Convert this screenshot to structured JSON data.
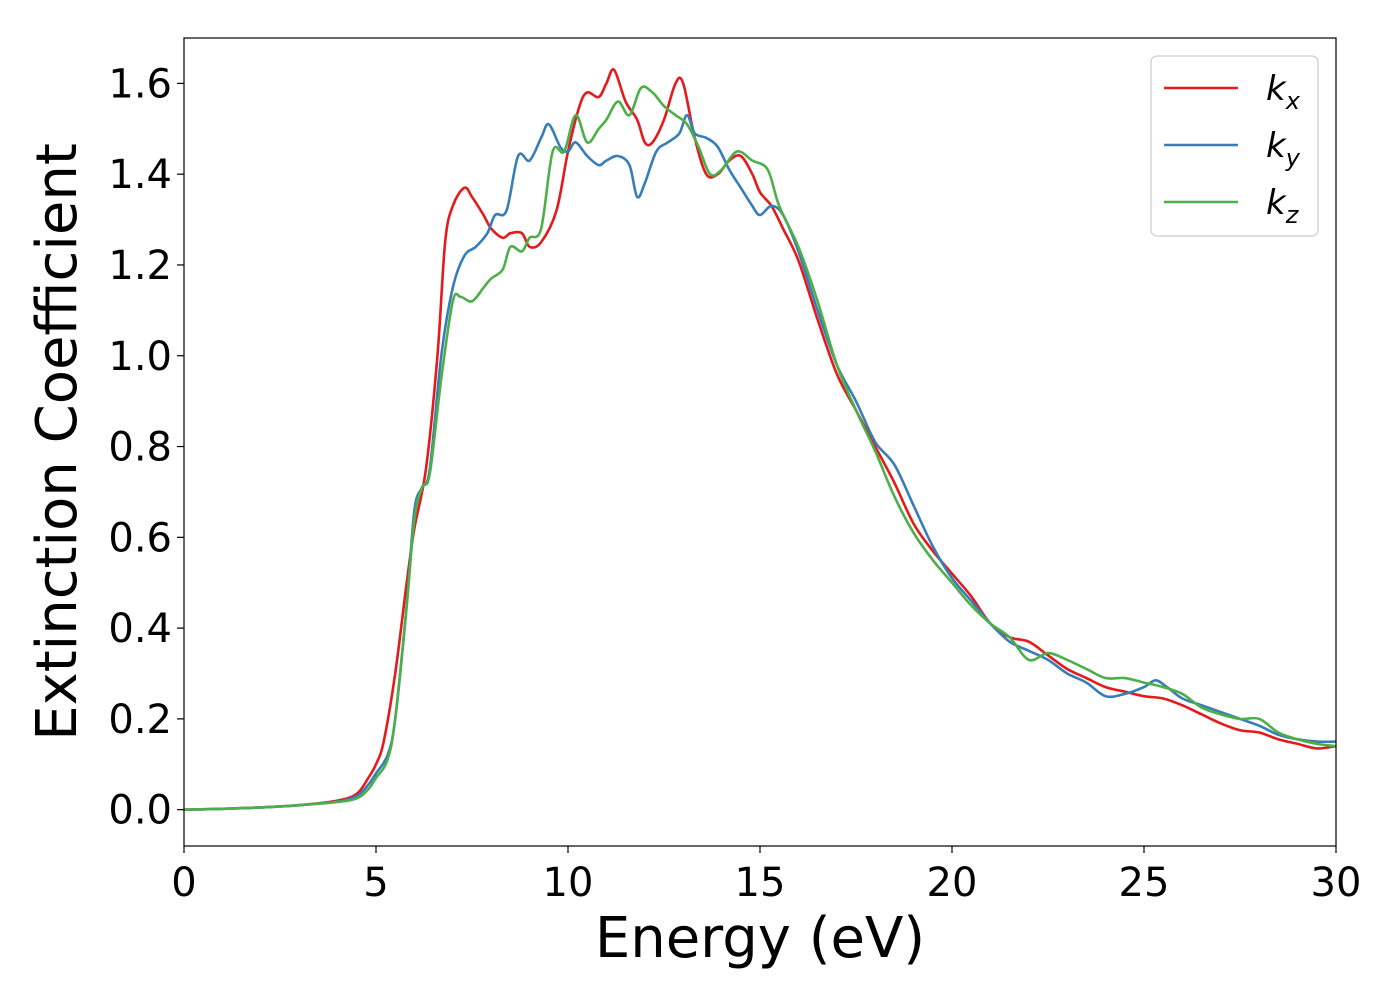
{
  "chart_data": {
    "type": "line",
    "xlabel": "Energy (eV)",
    "ylabel": "Extinction Coefficient",
    "xlim": [
      0,
      30
    ],
    "ylim": [
      -0.08,
      1.7
    ],
    "xticks": [
      0,
      5,
      10,
      15,
      20,
      25,
      30
    ],
    "xtick_labels": [
      "0",
      "5",
      "10",
      "15",
      "20",
      "25",
      "30"
    ],
    "yticks": [
      0.0,
      0.2,
      0.4,
      0.6,
      0.8,
      1.0,
      1.2,
      1.4,
      1.6
    ],
    "ytick_labels": [
      "0.0",
      "0.2",
      "0.4",
      "0.6",
      "0.8",
      "1.0",
      "1.2",
      "1.4",
      "1.6"
    ],
    "grid": false,
    "legend_position": "top-right",
    "series": [
      {
        "name": "k_x",
        "legend_main": "k",
        "legend_sub": "x",
        "color": "#e41a1c",
        "points": [
          [
            0,
            0.0
          ],
          [
            1,
            0.002
          ],
          [
            2,
            0.005
          ],
          [
            3,
            0.01
          ],
          [
            4,
            0.02
          ],
          [
            4.5,
            0.035
          ],
          [
            4.8,
            0.07
          ],
          [
            5.0,
            0.1
          ],
          [
            5.2,
            0.15
          ],
          [
            5.5,
            0.3
          ],
          [
            5.8,
            0.5
          ],
          [
            6.0,
            0.62
          ],
          [
            6.3,
            0.75
          ],
          [
            6.6,
            1.0
          ],
          [
            6.8,
            1.25
          ],
          [
            7.0,
            1.33
          ],
          [
            7.3,
            1.37
          ],
          [
            7.5,
            1.35
          ],
          [
            7.8,
            1.31
          ],
          [
            8.0,
            1.28
          ],
          [
            8.3,
            1.26
          ],
          [
            8.5,
            1.27
          ],
          [
            8.8,
            1.27
          ],
          [
            9.0,
            1.24
          ],
          [
            9.3,
            1.25
          ],
          [
            9.7,
            1.32
          ],
          [
            10.0,
            1.45
          ],
          [
            10.3,
            1.55
          ],
          [
            10.5,
            1.58
          ],
          [
            10.8,
            1.57
          ],
          [
            11.0,
            1.6
          ],
          [
            11.2,
            1.63
          ],
          [
            11.5,
            1.56
          ],
          [
            11.8,
            1.52
          ],
          [
            12.0,
            1.47
          ],
          [
            12.2,
            1.47
          ],
          [
            12.5,
            1.52
          ],
          [
            12.8,
            1.6
          ],
          [
            13.0,
            1.6
          ],
          [
            13.3,
            1.48
          ],
          [
            13.6,
            1.4
          ],
          [
            13.9,
            1.4
          ],
          [
            14.2,
            1.43
          ],
          [
            14.5,
            1.44
          ],
          [
            14.8,
            1.4
          ],
          [
            15.0,
            1.36
          ],
          [
            15.3,
            1.33
          ],
          [
            15.6,
            1.28
          ],
          [
            16.0,
            1.21
          ],
          [
            16.5,
            1.08
          ],
          [
            17.0,
            0.96
          ],
          [
            17.5,
            0.88
          ],
          [
            18.0,
            0.8
          ],
          [
            18.5,
            0.72
          ],
          [
            19.0,
            0.63
          ],
          [
            19.5,
            0.57
          ],
          [
            20.0,
            0.52
          ],
          [
            20.5,
            0.47
          ],
          [
            21.0,
            0.41
          ],
          [
            21.5,
            0.38
          ],
          [
            22.0,
            0.37
          ],
          [
            22.5,
            0.34
          ],
          [
            23.0,
            0.31
          ],
          [
            23.5,
            0.29
          ],
          [
            24.0,
            0.27
          ],
          [
            24.5,
            0.26
          ],
          [
            25.0,
            0.25
          ],
          [
            25.5,
            0.245
          ],
          [
            26.0,
            0.23
          ],
          [
            26.5,
            0.21
          ],
          [
            27.0,
            0.19
          ],
          [
            27.5,
            0.175
          ],
          [
            28.0,
            0.17
          ],
          [
            28.5,
            0.155
          ],
          [
            29.0,
            0.145
          ],
          [
            29.5,
            0.135
          ],
          [
            30.0,
            0.14
          ]
        ]
      },
      {
        "name": "k_y",
        "legend_main": "k",
        "legend_sub": "y",
        "color": "#377eb8",
        "points": [
          [
            0,
            0.0
          ],
          [
            1,
            0.002
          ],
          [
            2,
            0.005
          ],
          [
            3,
            0.01
          ],
          [
            4,
            0.018
          ],
          [
            4.5,
            0.03
          ],
          [
            4.8,
            0.055
          ],
          [
            5.0,
            0.08
          ],
          [
            5.3,
            0.12
          ],
          [
            5.5,
            0.2
          ],
          [
            5.8,
            0.45
          ],
          [
            6.0,
            0.66
          ],
          [
            6.2,
            0.71
          ],
          [
            6.4,
            0.75
          ],
          [
            6.7,
            1.0
          ],
          [
            7.0,
            1.15
          ],
          [
            7.3,
            1.22
          ],
          [
            7.6,
            1.24
          ],
          [
            7.9,
            1.27
          ],
          [
            8.1,
            1.31
          ],
          [
            8.4,
            1.32
          ],
          [
            8.7,
            1.44
          ],
          [
            9.0,
            1.43
          ],
          [
            9.3,
            1.48
          ],
          [
            9.5,
            1.51
          ],
          [
            9.8,
            1.46
          ],
          [
            10.0,
            1.45
          ],
          [
            10.2,
            1.47
          ],
          [
            10.5,
            1.44
          ],
          [
            10.8,
            1.42
          ],
          [
            11.0,
            1.43
          ],
          [
            11.3,
            1.44
          ],
          [
            11.6,
            1.42
          ],
          [
            11.8,
            1.35
          ],
          [
            12.0,
            1.38
          ],
          [
            12.3,
            1.45
          ],
          [
            12.6,
            1.47
          ],
          [
            12.9,
            1.49
          ],
          [
            13.1,
            1.53
          ],
          [
            13.3,
            1.49
          ],
          [
            13.6,
            1.48
          ],
          [
            13.9,
            1.46
          ],
          [
            14.2,
            1.41
          ],
          [
            14.5,
            1.37
          ],
          [
            14.8,
            1.33
          ],
          [
            15.0,
            1.31
          ],
          [
            15.3,
            1.33
          ],
          [
            15.6,
            1.31
          ],
          [
            16.0,
            1.23
          ],
          [
            16.5,
            1.1
          ],
          [
            17.0,
            0.98
          ],
          [
            17.5,
            0.9
          ],
          [
            18.0,
            0.81
          ],
          [
            18.5,
            0.76
          ],
          [
            19.0,
            0.67
          ],
          [
            19.5,
            0.58
          ],
          [
            20.0,
            0.51
          ],
          [
            20.5,
            0.46
          ],
          [
            21.0,
            0.41
          ],
          [
            21.5,
            0.37
          ],
          [
            22.0,
            0.35
          ],
          [
            22.5,
            0.33
          ],
          [
            23.0,
            0.3
          ],
          [
            23.5,
            0.28
          ],
          [
            24.0,
            0.25
          ],
          [
            24.5,
            0.255
          ],
          [
            25.0,
            0.27
          ],
          [
            25.3,
            0.285
          ],
          [
            25.6,
            0.27
          ],
          [
            26.0,
            0.245
          ],
          [
            26.5,
            0.23
          ],
          [
            27.0,
            0.215
          ],
          [
            27.5,
            0.2
          ],
          [
            28.0,
            0.185
          ],
          [
            28.5,
            0.165
          ],
          [
            29.0,
            0.155
          ],
          [
            29.5,
            0.15
          ],
          [
            30.0,
            0.15
          ]
        ]
      },
      {
        "name": "k_z",
        "legend_main": "k",
        "legend_sub": "z",
        "color": "#4daf4a",
        "points": [
          [
            0,
            0.0
          ],
          [
            1,
            0.002
          ],
          [
            2,
            0.005
          ],
          [
            3,
            0.01
          ],
          [
            4,
            0.017
          ],
          [
            4.5,
            0.025
          ],
          [
            4.8,
            0.045
          ],
          [
            5.0,
            0.07
          ],
          [
            5.3,
            0.11
          ],
          [
            5.5,
            0.2
          ],
          [
            5.8,
            0.45
          ],
          [
            6.0,
            0.64
          ],
          [
            6.2,
            0.71
          ],
          [
            6.4,
            0.74
          ],
          [
            6.7,
            0.95
          ],
          [
            7.0,
            1.12
          ],
          [
            7.2,
            1.13
          ],
          [
            7.5,
            1.12
          ],
          [
            7.8,
            1.15
          ],
          [
            8.0,
            1.17
          ],
          [
            8.3,
            1.19
          ],
          [
            8.5,
            1.24
          ],
          [
            8.8,
            1.23
          ],
          [
            9.0,
            1.26
          ],
          [
            9.3,
            1.28
          ],
          [
            9.6,
            1.45
          ],
          [
            9.9,
            1.45
          ],
          [
            10.2,
            1.53
          ],
          [
            10.5,
            1.47
          ],
          [
            10.8,
            1.5
          ],
          [
            11.0,
            1.52
          ],
          [
            11.3,
            1.56
          ],
          [
            11.6,
            1.53
          ],
          [
            11.9,
            1.59
          ],
          [
            12.2,
            1.58
          ],
          [
            12.5,
            1.55
          ],
          [
            12.8,
            1.53
          ],
          [
            13.1,
            1.51
          ],
          [
            13.4,
            1.46
          ],
          [
            13.7,
            1.4
          ],
          [
            14.0,
            1.41
          ],
          [
            14.4,
            1.45
          ],
          [
            14.8,
            1.43
          ],
          [
            15.2,
            1.41
          ],
          [
            15.5,
            1.33
          ],
          [
            16.0,
            1.24
          ],
          [
            16.5,
            1.12
          ],
          [
            17.0,
            0.98
          ],
          [
            17.5,
            0.88
          ],
          [
            18.0,
            0.79
          ],
          [
            18.5,
            0.69
          ],
          [
            19.0,
            0.61
          ],
          [
            19.5,
            0.55
          ],
          [
            20.0,
            0.5
          ],
          [
            20.5,
            0.45
          ],
          [
            21.0,
            0.41
          ],
          [
            21.5,
            0.38
          ],
          [
            22.0,
            0.33
          ],
          [
            22.5,
            0.345
          ],
          [
            23.0,
            0.33
          ],
          [
            23.5,
            0.31
          ],
          [
            24.0,
            0.29
          ],
          [
            24.5,
            0.29
          ],
          [
            25.0,
            0.28
          ],
          [
            25.5,
            0.27
          ],
          [
            26.0,
            0.255
          ],
          [
            26.5,
            0.225
          ],
          [
            27.0,
            0.21
          ],
          [
            27.5,
            0.2
          ],
          [
            28.0,
            0.2
          ],
          [
            28.5,
            0.17
          ],
          [
            29.0,
            0.155
          ],
          [
            29.5,
            0.145
          ],
          [
            30.0,
            0.14
          ]
        ]
      }
    ]
  }
}
